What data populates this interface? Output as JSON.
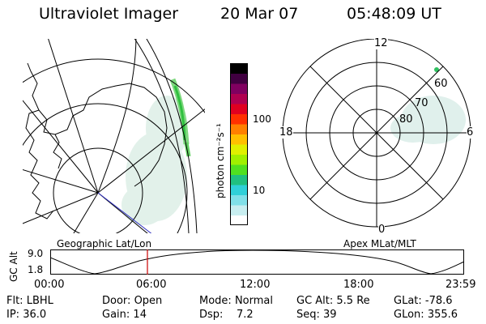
{
  "header": {
    "instrument": "Ultraviolet Imager",
    "date": "20 Mar 07",
    "time": "05:48:09 UT"
  },
  "colorbar": {
    "label": "photon cm⁻²s⁻¹",
    "ticks": [
      "100",
      "10"
    ],
    "colors": [
      "#ffffff",
      "#c8eef0",
      "#80e0e8",
      "#30d0d8",
      "#20c080",
      "#50e020",
      "#a0f000",
      "#e0f000",
      "#ffc000",
      "#ff8000",
      "#ff3000",
      "#e00020",
      "#b00050",
      "#800060",
      "#400040",
      "#000000"
    ]
  },
  "polar_plot": {
    "mlt_labels": {
      "top": "12",
      "left": "18",
      "right": "6",
      "bottom": "0"
    },
    "lat_labels": [
      "60",
      "70",
      "80"
    ]
  },
  "map_labels": {
    "left": "Geographic Lat/Lon",
    "right": "Apex MLat/MLT"
  },
  "altitude_plot": {
    "ylabel": "GC Alt",
    "yticks": [
      "9.0",
      "1.8"
    ],
    "xticks": [
      "00:00",
      "06:00",
      "12:00",
      "18:00",
      "23:59"
    ],
    "marker_color": "#cc0000"
  },
  "footer": {
    "flt_label": "Flt:",
    "flt_value": "LBHL",
    "door_label": "Door:",
    "door_value": "Open",
    "mode_label": "Mode:",
    "mode_value": "Normal",
    "gcalt_label": "GC Alt:",
    "gcalt_value": "5.5 Re",
    "glat_label": "GLat:",
    "glat_value": "-78.6",
    "ip_label": "IP:",
    "ip_value": "36.0",
    "gain_label": "Gain:",
    "gain_value": "14",
    "dsp_label": "Dsp:",
    "dsp_value": "7.2",
    "seq_label": "Seq:",
    "seq_value": "39",
    "glon_label": "GLon:",
    "glon_value": "355.6"
  }
}
